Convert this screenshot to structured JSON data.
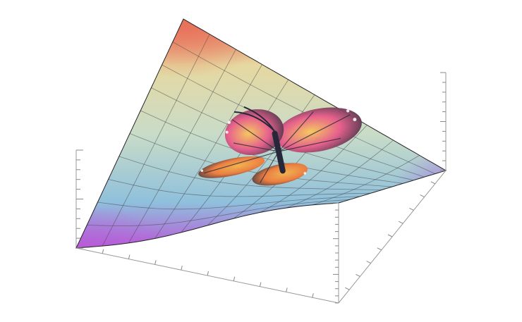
{
  "scene": {
    "kind": "3d-surface-plot",
    "background": "#ffffff",
    "surface_gradient": {
      "top_corner": "#e8705a",
      "upper": "#e6d8a0",
      "middle": "#c9dcc8",
      "lower": "#8fc0dc",
      "left_corner": "#b85ad8",
      "right_corner": "#b060e0"
    },
    "mesh_line_color": "#444444",
    "box_line_color": "#999999",
    "tick_color": "#888888",
    "mesh_divisions": 10,
    "overlay": {
      "kind": "butterfly-texture",
      "wing_colors": [
        "#f3b24a",
        "#e85a8a",
        "#f07a3a",
        "#2a2a3a",
        "#5a8ad8"
      ],
      "body_color": "#26283a"
    }
  }
}
